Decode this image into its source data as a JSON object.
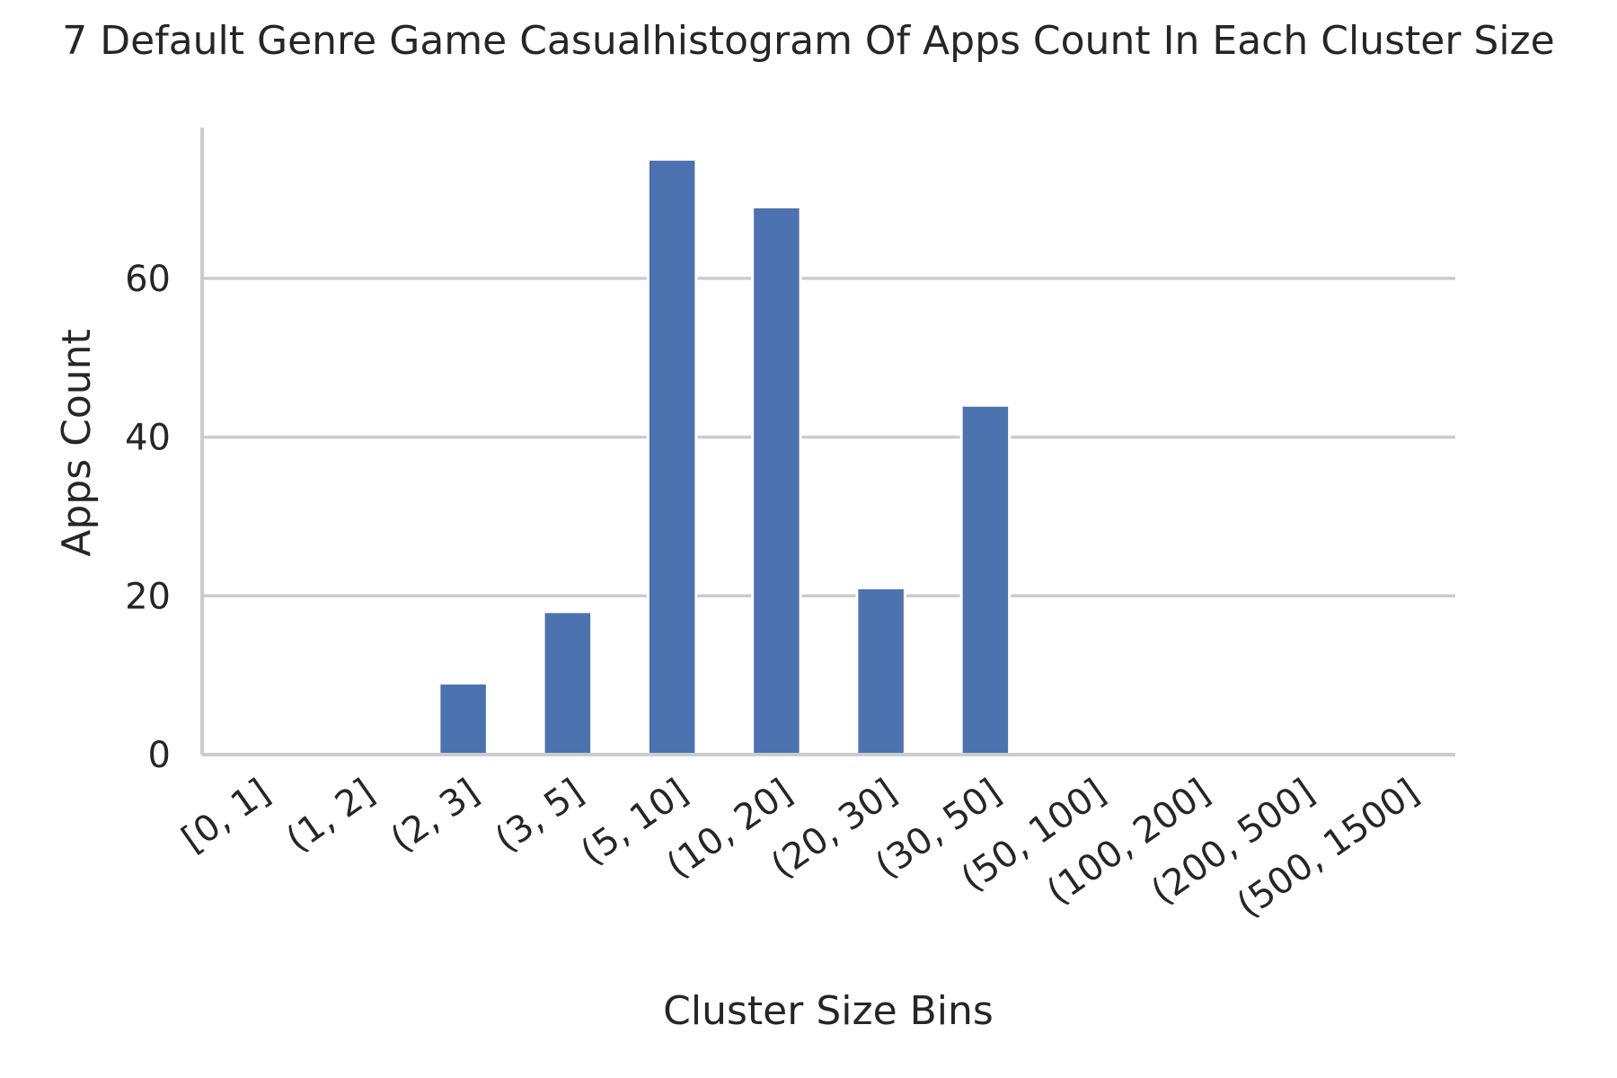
{
  "chart_data": {
    "type": "bar",
    "title": "7 Default Genre Game Casualhistogram Of Apps Count In Each Cluster Size",
    "xlabel": "Cluster Size Bins",
    "ylabel": "Apps Count",
    "categories": [
      "[0, 1]",
      "(1, 2]",
      "(2, 3]",
      "(3, 5]",
      "(5, 10]",
      "(10, 20]",
      "(20, 30]",
      "(30, 50]",
      "(50, 100]",
      "(100, 200]",
      "(200, 500]",
      "(500, 1500]"
    ],
    "values": [
      0,
      0,
      9,
      18,
      75,
      69,
      21,
      44,
      0,
      0,
      0,
      0
    ],
    "ylim": [
      0,
      79
    ],
    "yticks": [
      0,
      20,
      40,
      60
    ],
    "grid": true,
    "bar_color": "#4c72b0",
    "grid_color": "#cccccc",
    "text_color": "#262626"
  }
}
